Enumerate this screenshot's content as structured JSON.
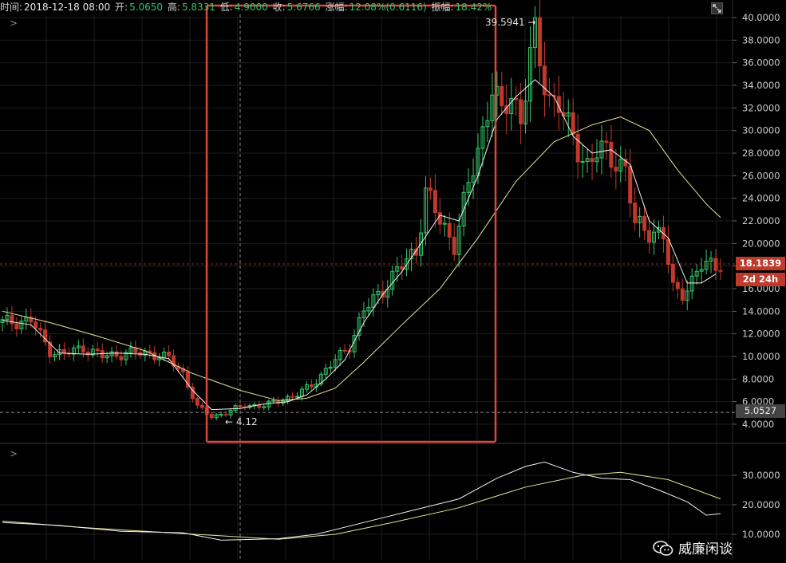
{
  "header": {
    "time_label": "时间:",
    "time_value": "2018-12-18 08:00",
    "open_label": "开:",
    "open_value": "5.0650",
    "high_label": "高:",
    "high_value": "5.8331",
    "low_label": "低:",
    "low_value": "4.9000",
    "close_label": "收:",
    "close_value": "5.6766",
    "change_label": "涨幅:",
    "change_value": "12.08%(0.6116)",
    "amplitude_label": "振幅:",
    "amplitude_value": "18.42%"
  },
  "badges": {
    "last_price": "18.1839",
    "countdown": "2d 24h",
    "crosshair_price": "5.0527"
  },
  "annotations": {
    "high_marker": "39.5941 →",
    "low_marker": "← 4.12"
  },
  "watermark": {
    "text": "威廉闲谈"
  },
  "colors": {
    "up": "#35c76a",
    "down": "#c0392b",
    "fast_ma": "#f0f0f0",
    "slow_ma": "#e6e39a",
    "highlight_box": "#d9483b",
    "grid": "#1e1e1e"
  },
  "chart_data": [
    {
      "type": "candlestick",
      "y_axis": {
        "ticks": [
          "4.0000",
          "6.0000",
          "8.0000",
          "10.0000",
          "12.0000",
          "14.0000",
          "16.0000",
          "18.0000",
          "20.0000",
          "22.0000",
          "24.0000",
          "26.0000",
          "28.0000",
          "30.0000",
          "32.0000",
          "34.0000",
          "36.0000",
          "38.0000",
          "40.0000"
        ],
        "ylim": [
          3.0,
          41.0
        ],
        "position": "right"
      },
      "last_price": 18.1839,
      "crosshair_value": 5.0527,
      "highest": 39.5941,
      "lowest": 4.12,
      "highlight_region": "rectangle around the rally from the 4.12 low to the 39.5941 high",
      "trend_points": [
        {
          "i": 0,
          "v": 13.0
        },
        {
          "i": 6,
          "v": 13.2
        },
        {
          "i": 10,
          "v": 10.5
        },
        {
          "i": 13,
          "v": 10.2
        },
        {
          "i": 17,
          "v": 10.8
        },
        {
          "i": 21,
          "v": 10.0
        },
        {
          "i": 26,
          "v": 10.3
        },
        {
          "i": 31,
          "v": 10.3
        },
        {
          "i": 35,
          "v": 9.8
        },
        {
          "i": 38,
          "v": 8.5
        },
        {
          "i": 41,
          "v": 5.5
        },
        {
          "i": 44,
          "v": 4.7
        },
        {
          "i": 47,
          "v": 5.0
        },
        {
          "i": 51,
          "v": 5.7
        },
        {
          "i": 55,
          "v": 5.6
        },
        {
          "i": 58,
          "v": 6.1
        },
        {
          "i": 62,
          "v": 6.6
        },
        {
          "i": 65,
          "v": 7.5
        },
        {
          "i": 69,
          "v": 9.2
        },
        {
          "i": 73,
          "v": 11.0
        },
        {
          "i": 76,
          "v": 14.0
        },
        {
          "i": 80,
          "v": 16.0
        },
        {
          "i": 84,
          "v": 18.0
        },
        {
          "i": 87,
          "v": 19.5
        },
        {
          "i": 89,
          "v": 24.5
        },
        {
          "i": 92,
          "v": 22.0
        },
        {
          "i": 95,
          "v": 20.0
        },
        {
          "i": 98,
          "v": 25.0
        },
        {
          "i": 101,
          "v": 30.0
        },
        {
          "i": 103,
          "v": 34.0
        },
        {
          "i": 105,
          "v": 31.0
        },
        {
          "i": 107,
          "v": 33.5
        },
        {
          "i": 109,
          "v": 31.0
        },
        {
          "i": 111,
          "v": 36.5
        },
        {
          "i": 112,
          "v": 38.0
        },
        {
          "i": 113,
          "v": 36.0
        },
        {
          "i": 115,
          "v": 33.0
        },
        {
          "i": 117,
          "v": 32.5
        },
        {
          "i": 119,
          "v": 30.0
        },
        {
          "i": 121,
          "v": 28.5
        },
        {
          "i": 123,
          "v": 27.0
        },
        {
          "i": 125,
          "v": 28.0
        },
        {
          "i": 127,
          "v": 28.0
        },
        {
          "i": 129,
          "v": 27.5
        },
        {
          "i": 131,
          "v": 26.5
        },
        {
          "i": 133,
          "v": 21.5
        },
        {
          "i": 135,
          "v": 21.5
        },
        {
          "i": 137,
          "v": 21.0
        },
        {
          "i": 139,
          "v": 20.5
        },
        {
          "i": 141,
          "v": 16.0
        },
        {
          "i": 143,
          "v": 15.8
        },
        {
          "i": 145,
          "v": 16.5
        },
        {
          "i": 147,
          "v": 18.0
        },
        {
          "i": 149,
          "v": 18.3
        }
      ],
      "fast_ma": [
        {
          "i": 0,
          "v": 13.2
        },
        {
          "i": 6,
          "v": 12.8
        },
        {
          "i": 12,
          "v": 10.3
        },
        {
          "i": 18,
          "v": 10.2
        },
        {
          "i": 24,
          "v": 10.3
        },
        {
          "i": 30,
          "v": 10.2
        },
        {
          "i": 35,
          "v": 9.8
        },
        {
          "i": 40,
          "v": 7.0
        },
        {
          "i": 44,
          "v": 5.3
        },
        {
          "i": 50,
          "v": 5.4
        },
        {
          "i": 55,
          "v": 5.8
        },
        {
          "i": 60,
          "v": 6.0
        },
        {
          "i": 64,
          "v": 6.6
        },
        {
          "i": 68,
          "v": 8.0
        },
        {
          "i": 72,
          "v": 9.7
        },
        {
          "i": 76,
          "v": 13.0
        },
        {
          "i": 80,
          "v": 15.5
        },
        {
          "i": 84,
          "v": 17.5
        },
        {
          "i": 88,
          "v": 20.0
        },
        {
          "i": 92,
          "v": 22.5
        },
        {
          "i": 96,
          "v": 22.0
        },
        {
          "i": 100,
          "v": 26.0
        },
        {
          "i": 104,
          "v": 31.0
        },
        {
          "i": 108,
          "v": 33.0
        },
        {
          "i": 112,
          "v": 34.5
        },
        {
          "i": 116,
          "v": 33.0
        },
        {
          "i": 120,
          "v": 29.5
        },
        {
          "i": 124,
          "v": 28.0
        },
        {
          "i": 128,
          "v": 28.3
        },
        {
          "i": 132,
          "v": 27.0
        },
        {
          "i": 136,
          "v": 22.0
        },
        {
          "i": 140,
          "v": 20.5
        },
        {
          "i": 144,
          "v": 16.5
        },
        {
          "i": 147,
          "v": 16.5
        },
        {
          "i": 150,
          "v": 17.3
        }
      ],
      "slow_ma": [
        {
          "i": 0,
          "v": 14.0
        },
        {
          "i": 10,
          "v": 13.0
        },
        {
          "i": 20,
          "v": 11.8
        },
        {
          "i": 30,
          "v": 10.5
        },
        {
          "i": 40,
          "v": 8.5
        },
        {
          "i": 50,
          "v": 7.0
        },
        {
          "i": 58,
          "v": 6.1
        },
        {
          "i": 64,
          "v": 6.3
        },
        {
          "i": 70,
          "v": 7.2
        },
        {
          "i": 76,
          "v": 9.5
        },
        {
          "i": 84,
          "v": 12.8
        },
        {
          "i": 92,
          "v": 16.0
        },
        {
          "i": 100,
          "v": 20.5
        },
        {
          "i": 108,
          "v": 25.5
        },
        {
          "i": 116,
          "v": 29.0
        },
        {
          "i": 124,
          "v": 30.5
        },
        {
          "i": 130,
          "v": 31.2
        },
        {
          "i": 136,
          "v": 30.0
        },
        {
          "i": 142,
          "v": 26.5
        },
        {
          "i": 148,
          "v": 23.5
        },
        {
          "i": 151,
          "v": 22.3
        }
      ]
    },
    {
      "type": "line",
      "y_axis": {
        "ticks": [
          "10.0000",
          "20.0000",
          "30.0000"
        ],
        "ylim": [
          8.0,
          38.0
        ],
        "position": "right"
      },
      "series": [
        {
          "points": [
            {
              "i": 0,
              "v": 14.0
            },
            {
              "i": 12,
              "v": 13.0
            },
            {
              "i": 25,
              "v": 11.0
            },
            {
              "i": 38,
              "v": 10.5
            },
            {
              "i": 46,
              "v": 8.0
            },
            {
              "i": 58,
              "v": 8.5
            },
            {
              "i": 66,
              "v": 10.0
            },
            {
              "i": 76,
              "v": 14.0
            },
            {
              "i": 86,
              "v": 18.0
            },
            {
              "i": 96,
              "v": 22.0
            },
            {
              "i": 104,
              "v": 29.0
            },
            {
              "i": 110,
              "v": 33.0
            },
            {
              "i": 114,
              "v": 34.5
            },
            {
              "i": 120,
              "v": 31.0
            },
            {
              "i": 126,
              "v": 29.0
            },
            {
              "i": 132,
              "v": 28.5
            },
            {
              "i": 138,
              "v": 25.0
            },
            {
              "i": 144,
              "v": 21.0
            },
            {
              "i": 148,
              "v": 16.5
            },
            {
              "i": 151,
              "v": 17.0
            }
          ]
        },
        {
          "points": [
            {
              "i": 0,
              "v": 14.5
            },
            {
              "i": 15,
              "v": 12.5
            },
            {
              "i": 30,
              "v": 11.0
            },
            {
              "i": 46,
              "v": 9.5
            },
            {
              "i": 58,
              "v": 8.3
            },
            {
              "i": 70,
              "v": 10.0
            },
            {
              "i": 82,
              "v": 14.0
            },
            {
              "i": 96,
              "v": 19.0
            },
            {
              "i": 110,
              "v": 26.0
            },
            {
              "i": 122,
              "v": 30.0
            },
            {
              "i": 130,
              "v": 31.0
            },
            {
              "i": 140,
              "v": 28.5
            },
            {
              "i": 151,
              "v": 22.0
            }
          ]
        }
      ]
    }
  ]
}
